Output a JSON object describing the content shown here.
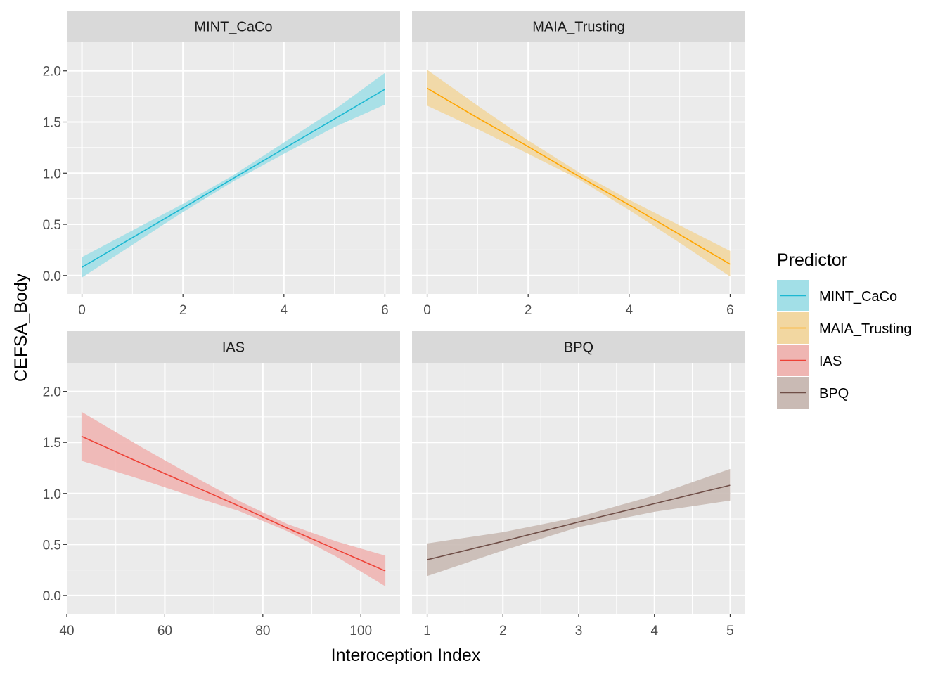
{
  "chart_data": {
    "type": "line",
    "xlabel": "Interoception Index",
    "ylabel": "CEFSA_Body",
    "legend": {
      "title": "Predictor",
      "position": "right",
      "entries": [
        {
          "label": "MINT_CaCo",
          "color": "#1cb8d2",
          "fill": "#a2dfe7"
        },
        {
          "label": "MAIA_Trusting",
          "color": "#ffa500",
          "fill": "#f2d7a1"
        },
        {
          "label": "IAS",
          "color": "#ee4136",
          "fill": "#efb5b2"
        },
        {
          "label": "BPQ",
          "color": "#6f4e47",
          "fill": "#c9bab4"
        }
      ]
    },
    "grid": true,
    "panels": [
      {
        "strip": "MINT_CaCo",
        "xlim": [
          -0.3,
          6.3
        ],
        "ylim": [
          -0.18,
          2.28
        ],
        "xticks": [
          0,
          2,
          4,
          6
        ],
        "xticklabels": [
          "0",
          "2",
          "4",
          "6"
        ],
        "yticks": [
          0,
          0.5,
          1,
          1.5,
          2
        ],
        "yticklabels": [
          "0.0",
          "0.5",
          "1.0",
          "1.5",
          "2.0"
        ],
        "x": [
          0,
          1,
          2,
          3,
          4,
          5,
          6
        ],
        "y": [
          0.08,
          0.37,
          0.66,
          0.95,
          1.24,
          1.53,
          1.82
        ],
        "lower": [
          -0.02,
          0.3,
          0.62,
          0.92,
          1.19,
          1.45,
          1.67
        ],
        "upper": [
          0.18,
          0.44,
          0.7,
          0.98,
          1.3,
          1.62,
          1.98
        ]
      },
      {
        "strip": "MAIA_Trusting",
        "xlim": [
          -0.3,
          6.3
        ],
        "ylim": [
          -0.18,
          2.28
        ],
        "xticks": [
          0,
          2,
          4,
          6
        ],
        "xticklabels": [
          "0",
          "2",
          "4",
          "6"
        ],
        "yticks": [
          0,
          0.5,
          1,
          1.5,
          2
        ],
        "yticklabels": [
          "0.0",
          "0.5",
          "1.0",
          "1.5",
          "2.0"
        ],
        "x": [
          0,
          1,
          2,
          3,
          4,
          5,
          6
        ],
        "y": [
          1.83,
          1.54,
          1.26,
          0.97,
          0.69,
          0.4,
          0.11
        ],
        "lower": [
          1.66,
          1.43,
          1.19,
          0.94,
          0.64,
          0.32,
          -0.01
        ],
        "upper": [
          2.01,
          1.66,
          1.32,
          1.01,
          0.74,
          0.49,
          0.24
        ]
      },
      {
        "strip": "IAS",
        "xlim": [
          40,
          108
        ],
        "ylim": [
          -0.18,
          2.28
        ],
        "xticks": [
          40,
          60,
          80,
          100
        ],
        "xticklabels": [
          "40",
          "60",
          "80",
          "100"
        ],
        "yticks": [
          0,
          0.5,
          1,
          1.5,
          2
        ],
        "yticklabels": [
          "0.0",
          "0.5",
          "1.0",
          "1.5",
          "2.0"
        ],
        "x": [
          43,
          55,
          65,
          75,
          85,
          95,
          105
        ],
        "y": [
          1.56,
          1.3,
          1.09,
          0.88,
          0.66,
          0.45,
          0.24
        ],
        "lower": [
          1.32,
          1.14,
          0.98,
          0.83,
          0.63,
          0.38,
          0.09
        ],
        "upper": [
          1.8,
          1.46,
          1.19,
          0.93,
          0.7,
          0.53,
          0.39
        ]
      },
      {
        "strip": "BPQ",
        "xlim": [
          0.8,
          5.2
        ],
        "ylim": [
          -0.18,
          2.28
        ],
        "xticks": [
          1,
          2,
          3,
          4,
          5
        ],
        "xticklabels": [
          "1",
          "2",
          "3",
          "4",
          "5"
        ],
        "yticks": [
          0,
          0.5,
          1,
          1.5,
          2
        ],
        "yticklabels": [
          "0.0",
          "0.5",
          "1.0",
          "1.5",
          "2.0"
        ],
        "x": [
          1,
          2,
          3,
          4,
          5
        ],
        "y": [
          0.35,
          0.53,
          0.72,
          0.9,
          1.08
        ],
        "lower": [
          0.19,
          0.44,
          0.67,
          0.82,
          0.93
        ],
        "upper": [
          0.51,
          0.62,
          0.77,
          0.98,
          1.24
        ]
      }
    ]
  }
}
